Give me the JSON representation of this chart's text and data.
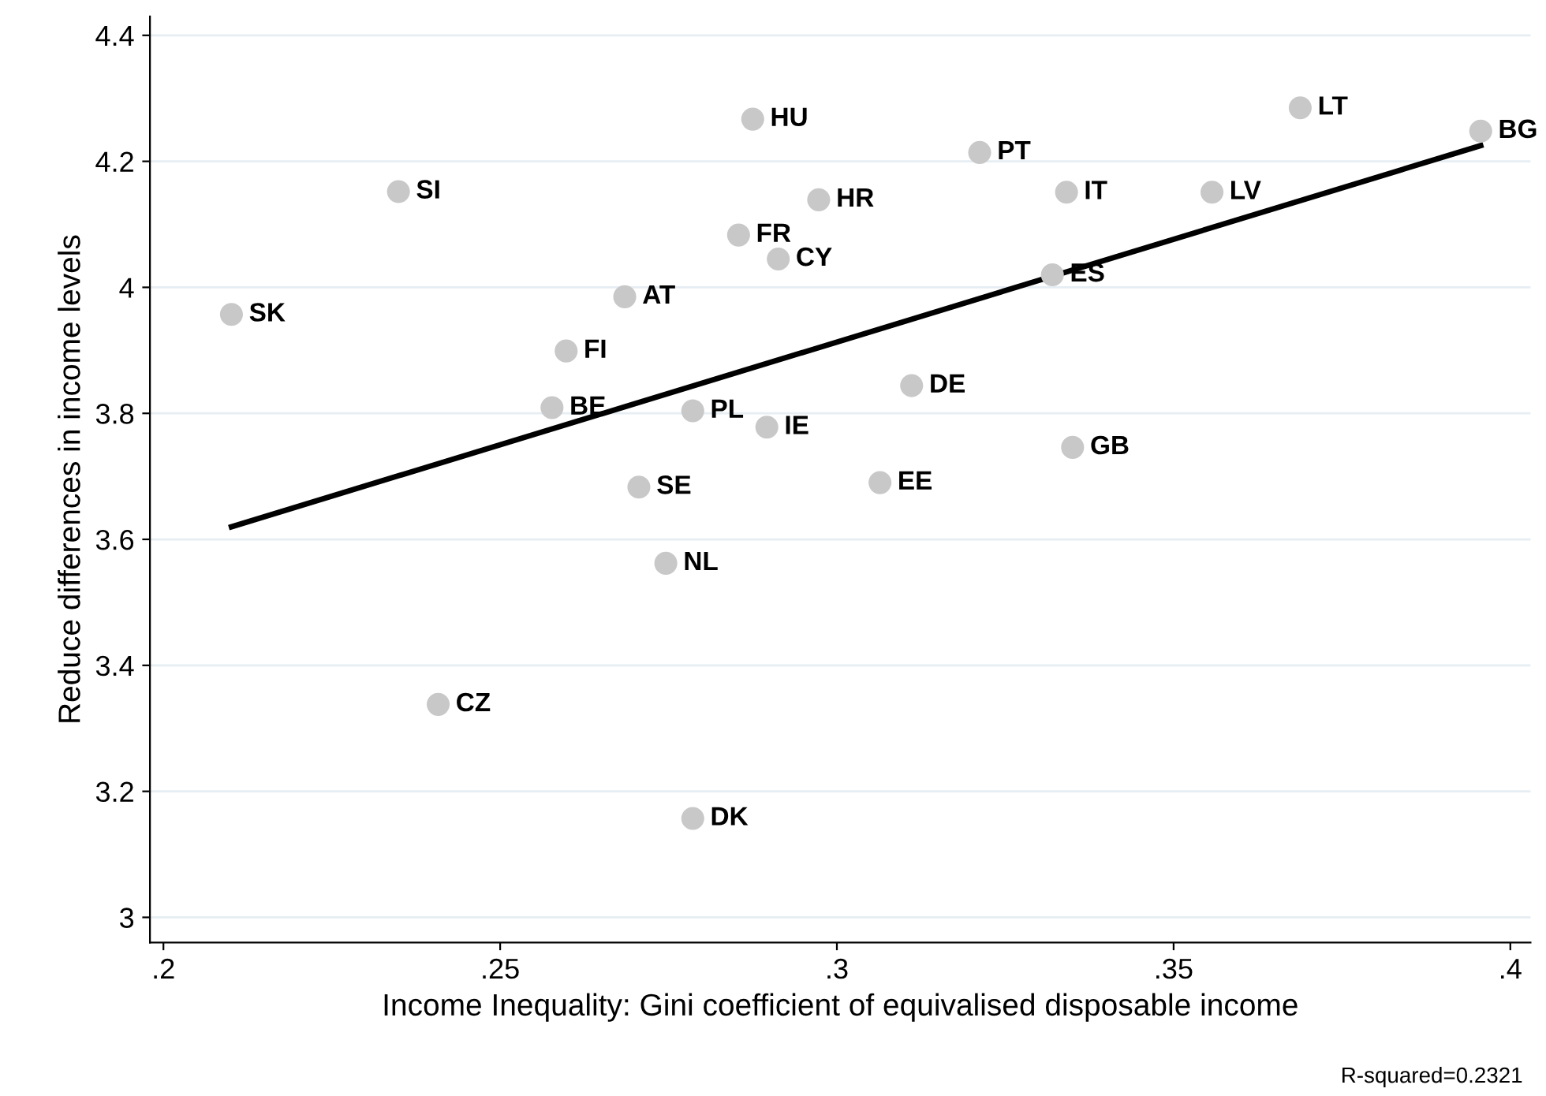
{
  "chart_data": {
    "type": "scatter",
    "xlabel": "Income Inequality: Gini coefficient of equivalised disposable income",
    "ylabel": "Reduce differences in income levels",
    "xlim": [
      0.198,
      0.403
    ],
    "ylim": [
      2.96,
      4.43
    ],
    "xticks": [
      {
        "value": 0.2,
        "label": ".2"
      },
      {
        "value": 0.25,
        "label": ".25"
      },
      {
        "value": 0.3,
        "label": ".3"
      },
      {
        "value": 0.35,
        "label": ".35"
      },
      {
        "value": 0.4,
        "label": ".4"
      }
    ],
    "yticks": [
      3,
      3.2,
      3.4,
      3.6,
      3.8,
      4,
      4.2,
      4.4
    ],
    "grid": "y",
    "legend": false,
    "marker": "circle",
    "series": [
      {
        "color": "#c8c8c8",
        "x": [
          0.2101,
          0.2349,
          0.2408,
          0.2577,
          0.2598,
          0.2685,
          0.2706,
          0.2746,
          0.2786,
          0.2786,
          0.2875,
          0.2854,
          0.2913,
          0.2896,
          0.2973,
          0.3064,
          0.3111,
          0.3212,
          0.332,
          0.3341,
          0.335,
          0.3557,
          0.3688,
          0.3956
        ],
        "values": [
          3.957,
          4.152,
          3.338,
          3.809,
          3.899,
          3.985,
          3.683,
          3.562,
          3.804,
          3.157,
          4.267,
          4.083,
          4.045,
          3.778,
          4.139,
          3.69,
          3.844,
          4.214,
          4.02,
          4.151,
          3.746,
          4.151,
          4.285,
          4.248
        ],
        "value_labels": [
          "SK",
          "SI",
          "CZ",
          "BE",
          "FI",
          "AT",
          "SE",
          "NL",
          "PL",
          "DK",
          "HU",
          "FR",
          "CY",
          "IE",
          "HR",
          "EE",
          "DE",
          "PT",
          "ES",
          "IT",
          "GB",
          "LV",
          "LT",
          "BG"
        ]
      },
      {
        "type": "line",
        "color": "#000000",
        "line_style": "solid",
        "marker": "none",
        "x": [
          0.2101,
          0.3956
        ],
        "values": [
          3.62,
          4.225
        ]
      }
    ],
    "annotations": [
      "R-squared=0.2321"
    ]
  }
}
